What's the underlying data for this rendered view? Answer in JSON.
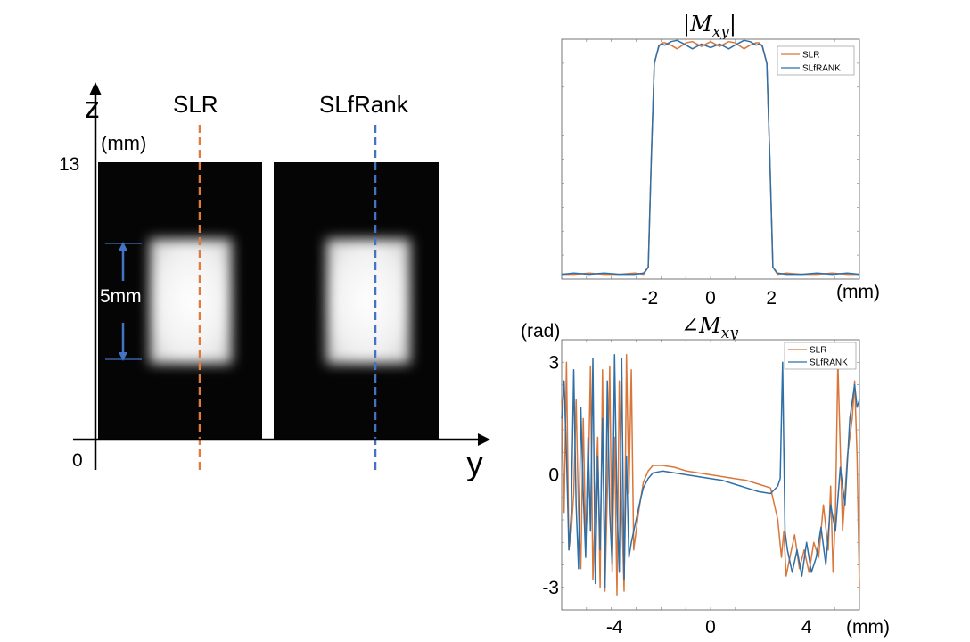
{
  "colors": {
    "slr": "#D9773A",
    "slfrank": "#2F6FA8",
    "slr_dash": "#E07B3C",
    "slfrank_dash": "#4472C4",
    "arrow": "#4472C4",
    "axes": "#000000"
  },
  "image_panel": {
    "z_label": "z",
    "z_unit": "(mm)",
    "y_label": "y",
    "z_top_tick": "13",
    "origin_tick": "0",
    "slr_label": "SLR",
    "slfrank_label": "SLfRank",
    "slice_label": "5mm"
  },
  "chart_data": [
    {
      "type": "line",
      "title": "|M_xy|",
      "title_parts": {
        "left": "|",
        "symbol": "M",
        "sub": "xy",
        "right": "|"
      },
      "xlabel": "(mm)",
      "ylabel": "",
      "xlim": [
        -4.9,
        4.9
      ],
      "ylim": [
        0,
        1.0
      ],
      "xticks": [
        -2,
        0,
        2
      ],
      "xtick_labels": [
        "-2",
        "0",
        "2"
      ],
      "legend": {
        "entries": [
          "SLR",
          "SLfRANK"
        ],
        "position": "top-right"
      },
      "series": [
        {
          "name": "SLR",
          "x": [
            -4.9,
            -4.5,
            -4.0,
            -3.5,
            -3.0,
            -2.5,
            -2.2,
            -2.05,
            -1.95,
            -1.85,
            -1.7,
            -1.6,
            -1.5,
            -1.3,
            -1.1,
            -0.8,
            -0.6,
            -0.3,
            0,
            0.3,
            0.6,
            0.8,
            1.1,
            1.3,
            1.5,
            1.6,
            1.7,
            1.85,
            1.95,
            2.05,
            2.2,
            2.5,
            3.0,
            3.5,
            4.0,
            4.5,
            4.9
          ],
          "values": [
            0.02,
            0.02,
            0.025,
            0.02,
            0.02,
            0.025,
            0.02,
            0.05,
            0.5,
            0.9,
            0.97,
            0.985,
            0.985,
            0.975,
            0.96,
            0.985,
            0.99,
            0.97,
            0.99,
            0.97,
            0.99,
            0.985,
            0.96,
            0.975,
            0.985,
            0.985,
            0.97,
            0.9,
            0.5,
            0.05,
            0.02,
            0.025,
            0.02,
            0.02,
            0.025,
            0.02,
            0.02
          ]
        },
        {
          "name": "SLfRANK",
          "x": [
            -4.9,
            -4.5,
            -4.0,
            -3.5,
            -3.0,
            -2.5,
            -2.2,
            -2.05,
            -1.95,
            -1.85,
            -1.7,
            -1.6,
            -1.5,
            -1.3,
            -1.1,
            -0.8,
            -0.6,
            -0.3,
            0,
            0.3,
            0.6,
            0.8,
            1.1,
            1.3,
            1.5,
            1.6,
            1.7,
            1.85,
            1.95,
            2.05,
            2.2,
            2.5,
            3.0,
            3.5,
            4.0,
            4.5,
            4.9
          ],
          "values": [
            0.02,
            0.025,
            0.02,
            0.025,
            0.02,
            0.02,
            0.025,
            0.05,
            0.5,
            0.9,
            0.975,
            0.98,
            0.975,
            0.99,
            0.995,
            0.975,
            0.96,
            0.98,
            0.965,
            0.98,
            0.96,
            0.975,
            0.995,
            0.99,
            0.975,
            0.98,
            0.975,
            0.9,
            0.5,
            0.05,
            0.025,
            0.02,
            0.02,
            0.025,
            0.02,
            0.025,
            0.02
          ]
        }
      ]
    },
    {
      "type": "line",
      "title": "∠M_xy",
      "title_parts": {
        "left": "∠",
        "symbol": "M",
        "sub": "xy",
        "right": ""
      },
      "xlabel": "(mm)",
      "ylabel": "(rad)",
      "xlim": [
        -6.2,
        6.2
      ],
      "ylim": [
        -3.6,
        3.6
      ],
      "xticks": [
        -4,
        0,
        4
      ],
      "xtick_labels": [
        "-4",
        "0",
        "4"
      ],
      "yticks": [
        3,
        0,
        -3
      ],
      "ytick_labels": [
        "3",
        "0",
        "-3"
      ],
      "legend": {
        "entries": [
          "SLR",
          "SLfRANK"
        ],
        "position": "top-right"
      },
      "series": [
        {
          "name": "SLR",
          "x": [
            -6.2,
            -6.1,
            -6.0,
            -5.9,
            -5.8,
            -5.7,
            -5.6,
            -5.5,
            -5.4,
            -5.3,
            -5.2,
            -5.1,
            -5.0,
            -4.9,
            -4.8,
            -4.7,
            -4.6,
            -4.5,
            -4.4,
            -4.3,
            -4.2,
            -4.1,
            -4.0,
            -3.9,
            -3.8,
            -3.7,
            -3.6,
            -3.5,
            -3.4,
            -3.3,
            -3.2,
            -3.1,
            -3.0,
            -2.9,
            -2.8,
            -2.6,
            -2.4,
            -2.0,
            -1.5,
            -1.0,
            -0.5,
            0,
            0.5,
            1.0,
            1.5,
            2.0,
            2.5,
            2.8,
            2.95,
            3.05,
            3.15,
            3.3,
            3.5,
            3.7,
            3.9,
            4.1,
            4.3,
            4.5,
            4.7,
            4.9,
            5.0,
            5.1,
            5.2,
            5.3,
            5.5,
            5.7,
            5.9,
            6.0,
            6.1,
            6.2
          ],
          "values": [
            2.0,
            -1.0,
            3.0,
            -2.0,
            -1.5,
            -0.5,
            2.0,
            -1.0,
            -2.5,
            1.5,
            -1.8,
            -0.5,
            2.9,
            -2.8,
            -0.8,
            1.0,
            -3.0,
            2.8,
            -3.1,
            -0.5,
            2.9,
            -2.6,
            1.0,
            -3.2,
            2.5,
            -0.8,
            -3.1,
            3.2,
            -0.5,
            2.8,
            -2.0,
            -1.5,
            -1.0,
            -0.6,
            -0.2,
            0.1,
            0.25,
            0.25,
            0.2,
            0.1,
            0.05,
            0.0,
            -0.05,
            -0.1,
            -0.15,
            -0.25,
            -0.35,
            -1.2,
            -2.2,
            -1.5,
            -2.7,
            -2.2,
            -1.6,
            -2.5,
            -2.0,
            -2.6,
            -1.8,
            -2.2,
            -0.8,
            -2.0,
            -0.3,
            -2.6,
            -1.0,
            3.0,
            -1.5,
            0.5,
            1.5,
            2.5,
            0.5,
            -3.0
          ]
        },
        {
          "name": "SLfRANK",
          "x": [
            -6.2,
            -6.1,
            -6.0,
            -5.9,
            -5.8,
            -5.7,
            -5.6,
            -5.5,
            -5.4,
            -5.3,
            -5.2,
            -5.1,
            -5.0,
            -4.9,
            -4.8,
            -4.7,
            -4.6,
            -4.5,
            -4.4,
            -4.3,
            -4.2,
            -4.1,
            -4.0,
            -3.9,
            -3.8,
            -3.7,
            -3.6,
            -3.5,
            -3.4,
            -3.3,
            -3.2,
            -3.1,
            -3.0,
            -2.9,
            -2.8,
            -2.6,
            -2.4,
            -2.0,
            -1.5,
            -1.0,
            -0.5,
            0,
            0.5,
            1.0,
            1.5,
            2.0,
            2.5,
            2.8,
            2.9,
            3.0,
            3.1,
            3.2,
            3.4,
            3.6,
            3.8,
            4.0,
            4.2,
            4.4,
            4.6,
            4.8,
            5.0,
            5.2,
            5.4,
            5.6,
            5.8,
            6.0,
            6.1,
            6.2
          ],
          "values": [
            1.5,
            2.5,
            0.5,
            -2.0,
            -1.0,
            2.8,
            -0.8,
            -2.5,
            1.8,
            -0.5,
            -2.2,
            1.0,
            -1.5,
            3.1,
            -2.9,
            0.5,
            -2.0,
            1.5,
            -3.0,
            2.5,
            -1.0,
            -2.4,
            3.2,
            -0.8,
            -2.6,
            3.1,
            -2.8,
            0.5,
            -2.2,
            -1.8,
            -1.5,
            -1.2,
            -0.9,
            -0.6,
            -0.35,
            -0.1,
            0.05,
            0.1,
            0.05,
            0.0,
            -0.05,
            -0.1,
            -0.15,
            -0.25,
            -0.35,
            -0.45,
            -0.5,
            -0.3,
            -0.1,
            3.0,
            -1.5,
            -2.0,
            -2.6,
            -2.0,
            -2.7,
            -1.8,
            -2.6,
            -2.2,
            -1.4,
            -2.4,
            -0.8,
            -1.5,
            0.2,
            -0.8,
            1.5,
            2.4,
            1.8,
            2.0
          ]
        }
      ]
    }
  ]
}
